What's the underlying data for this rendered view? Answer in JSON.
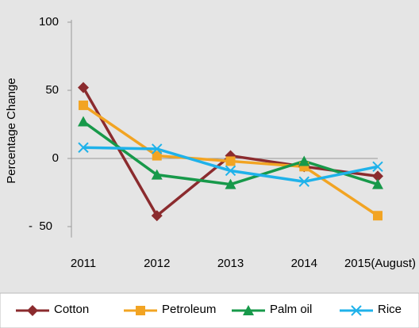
{
  "chart_data": {
    "type": "line",
    "y_label": "Percentage Change",
    "categories": [
      "2011",
      "2012",
      "2013",
      "2014",
      "2015(August)"
    ],
    "series": [
      {
        "name": "Cotton",
        "color": "#8b2b2e",
        "marker": "diamond",
        "values": [
          52,
          -42,
          2,
          -6,
          -13
        ]
      },
      {
        "name": "Petroleum",
        "color": "#f2a423",
        "marker": "square",
        "values": [
          39,
          2,
          -2,
          -6,
          -42
        ]
      },
      {
        "name": "Palm oil",
        "color": "#17994a",
        "marker": "triangle",
        "values": [
          27,
          -12,
          -19,
          -2,
          -19
        ]
      },
      {
        "name": "Rice",
        "color": "#1fb2ea",
        "marker": "x",
        "values": [
          8,
          7,
          -9,
          -17,
          -6
        ]
      }
    ],
    "ylim": [
      -58,
      100
    ],
    "yticks": [
      {
        "value": -50,
        "label": "-  50"
      },
      0,
      50,
      100
    ],
    "legend": "bottom"
  }
}
